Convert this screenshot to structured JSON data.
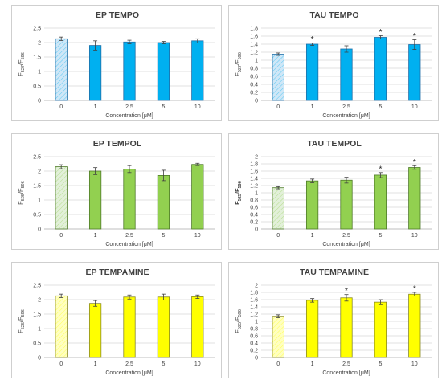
{
  "chart_data": [
    {
      "type": "bar",
      "title": "EP TEMPO",
      "xlabel": "Concentration [μM]",
      "ylabel": {
        "main": "F",
        "sub1": "527",
        "sep": "/F",
        "sub2": "596"
      },
      "ylim": [
        0,
        2.5
      ],
      "yticks": [
        "0",
        "0.5",
        "1",
        "1.5",
        "2",
        "2.5"
      ],
      "categories": [
        "0",
        "1",
        "2.5",
        "5",
        "10"
      ],
      "values": [
        2.13,
        1.9,
        2.02,
        2.0,
        2.06
      ],
      "errors": [
        0.06,
        0.16,
        0.06,
        0.04,
        0.07
      ],
      "significant": [
        false,
        false,
        false,
        false,
        false
      ],
      "colors": {
        "control": "#cfe7f7",
        "bar": "#00b0f0",
        "edge": "#1f6fa8"
      },
      "grid": true
    },
    {
      "type": "bar",
      "title": "TAU TEMPO",
      "xlabel": "Concentration [μM]",
      "ylabel": {
        "main": "F",
        "sub1": "527",
        "sep": "/F",
        "sub2": "596"
      },
      "ylim": [
        0,
        1.8
      ],
      "yticks": [
        "0",
        "0.2",
        "0.4",
        "0.6",
        "0.8",
        "1",
        "1.2",
        "1.4",
        "1.6",
        "1.8"
      ],
      "categories": [
        "0",
        "1",
        "2.5",
        "5",
        "10"
      ],
      "values": [
        1.15,
        1.4,
        1.28,
        1.57,
        1.39
      ],
      "errors": [
        0.03,
        0.03,
        0.08,
        0.04,
        0.12
      ],
      "significant": [
        false,
        true,
        false,
        true,
        true
      ],
      "significance_mark": "*",
      "colors": {
        "control": "#cfe7f7",
        "bar": "#00b0f0",
        "edge": "#1f6fa8"
      },
      "grid": true
    },
    {
      "type": "bar",
      "title": "EP TEMPOL",
      "xlabel": "Concentration [μM]",
      "ylabel": {
        "main": "F",
        "sub1": "525",
        "sep": "/F",
        "sub2": "596"
      },
      "ylim": [
        0,
        2.5
      ],
      "yticks": [
        "0",
        "0.5",
        "1",
        "1.5",
        "2",
        "2.5"
      ],
      "categories": [
        "0",
        "1",
        "2.5",
        "5",
        "10"
      ],
      "values": [
        2.15,
        2.0,
        2.07,
        1.85,
        2.23
      ],
      "errors": [
        0.07,
        0.12,
        0.12,
        0.18,
        0.04
      ],
      "significant": [
        false,
        false,
        false,
        false,
        false
      ],
      "colors": {
        "control": "#e2f0d9",
        "bar": "#92d050",
        "edge": "#4e7a28"
      },
      "grid": true
    },
    {
      "type": "bar",
      "title": "TAU TEMPOL",
      "xlabel": "Concentration [μM]",
      "ylabel": {
        "main": "F",
        "sub1": "525",
        "sep": "/F",
        "sub2": "596",
        "bold": true
      },
      "ylim": [
        0,
        2
      ],
      "yticks": [
        "0",
        "0.2",
        "0.4",
        "0.6",
        "0.8",
        "1",
        "1.2",
        "1.4",
        "1.6",
        "1.8",
        "2"
      ],
      "categories": [
        "0",
        "1",
        "2.5",
        "5",
        "10"
      ],
      "values": [
        1.14,
        1.33,
        1.35,
        1.49,
        1.7
      ],
      "errors": [
        0.03,
        0.05,
        0.08,
        0.07,
        0.05
      ],
      "significant": [
        false,
        false,
        false,
        true,
        true
      ],
      "significance_mark": "*",
      "colors": {
        "control": "#e2f0d9",
        "bar": "#92d050",
        "edge": "#4e7a28"
      },
      "grid": true
    },
    {
      "type": "bar",
      "title": "EP TEMPAMINE",
      "xlabel": "Concentration [μM]",
      "ylabel": {
        "main": "F",
        "sub1": "525",
        "sep": "/F",
        "sub2": "596"
      },
      "ylim": [
        0,
        2.5
      ],
      "yticks": [
        "0",
        "0.5",
        "1",
        "1.5",
        "2",
        "2.5"
      ],
      "categories": [
        "0",
        "1",
        "2.5",
        "5",
        "10"
      ],
      "values": [
        2.13,
        1.87,
        2.09,
        2.09,
        2.1
      ],
      "errors": [
        0.06,
        0.1,
        0.07,
        0.1,
        0.06
      ],
      "significant": [
        false,
        false,
        false,
        false,
        false
      ],
      "colors": {
        "control": "#ffffc0",
        "bar": "#ffff00",
        "edge": "#8a8a22"
      },
      "grid": true
    },
    {
      "type": "bar",
      "title": "TAU TEMPAMINE",
      "xlabel": "Concentration [μM]",
      "ylabel": {
        "main": "F",
        "sub1": "525",
        "sep": "/F",
        "sub2": "596"
      },
      "ylim": [
        0,
        2
      ],
      "yticks": [
        "0",
        "0.2",
        "0.4",
        "0.6",
        "0.8",
        "1",
        "1.2",
        "1.4",
        "1.6",
        "1.8",
        "2"
      ],
      "categories": [
        "0",
        "1",
        "2.5",
        "5",
        "10"
      ],
      "values": [
        1.14,
        1.58,
        1.65,
        1.53,
        1.75
      ],
      "errors": [
        0.04,
        0.05,
        0.09,
        0.07,
        0.05
      ],
      "significant": [
        false,
        false,
        true,
        false,
        true
      ],
      "significance_mark": "*",
      "colors": {
        "control": "#ffffc0",
        "bar": "#ffff00",
        "edge": "#8a8a22"
      },
      "grid": true
    }
  ]
}
